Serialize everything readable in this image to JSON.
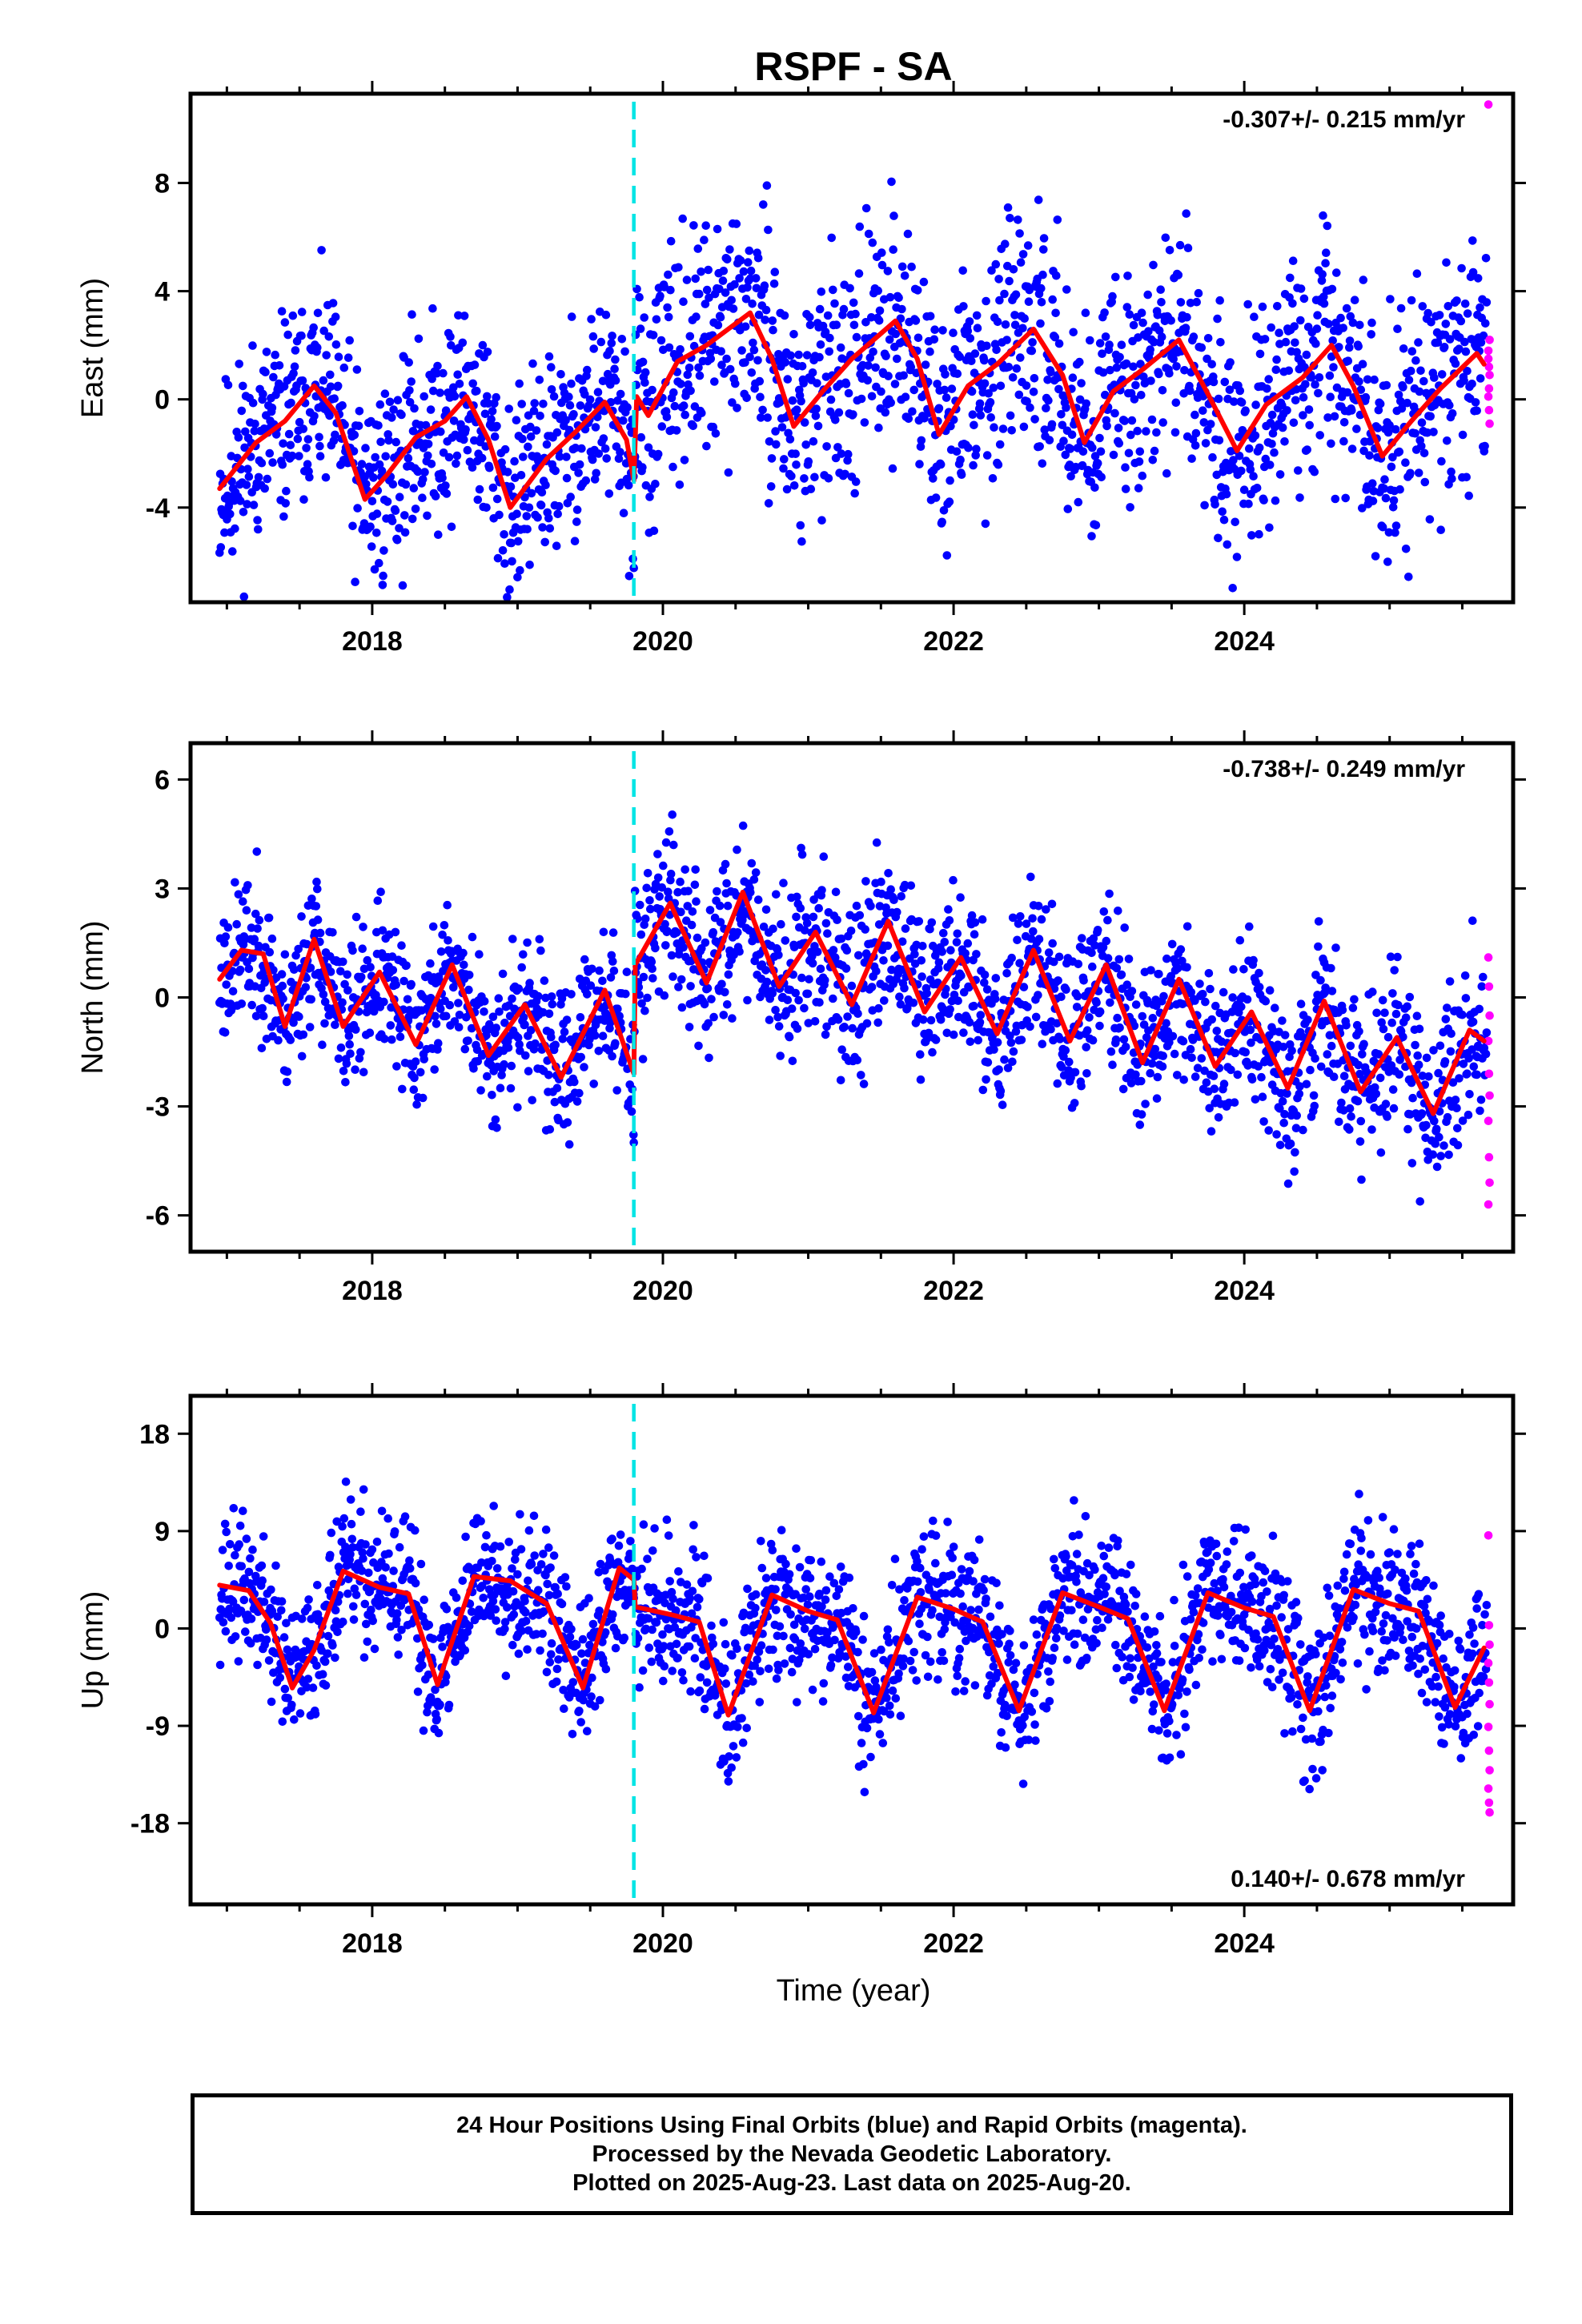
{
  "chart_data": {
    "type": "scatter",
    "title": "RSPF - SA",
    "xlabel": "Time (year)",
    "x_ticks": [
      2018,
      2020,
      2022,
      2024
    ],
    "xlim": [
      2016.75,
      2025.85
    ],
    "event_line_x": 2019.8,
    "colors": {
      "final": "#0000ff",
      "rapid": "#ff00ff",
      "fit": "#ff0000",
      "event": "#00e5e5"
    },
    "panels": [
      {
        "ylabel": "East (mm)",
        "ylim": [
          -7.5,
          11.3
        ],
        "y_ticks": [
          -4,
          0,
          4,
          8
        ],
        "rate": "-0.307+/- 0.215 mm/yr",
        "rate_position": "top-right",
        "fit": [
          [
            2016.95,
            -3.3
          ],
          [
            2017.2,
            -1.6
          ],
          [
            2017.4,
            -0.8
          ],
          [
            2017.6,
            0.5
          ],
          [
            2017.75,
            -0.5
          ],
          [
            2017.95,
            -3.7
          ],
          [
            2018.1,
            -2.8
          ],
          [
            2018.3,
            -1.4
          ],
          [
            2018.5,
            -0.8
          ],
          [
            2018.65,
            0.1
          ],
          [
            2018.8,
            -1.5
          ],
          [
            2018.95,
            -4.0
          ],
          [
            2019.2,
            -2.2
          ],
          [
            2019.4,
            -1.2
          ],
          [
            2019.6,
            -0.1
          ],
          [
            2019.75,
            -1.5
          ],
          [
            2019.8,
            -3.0
          ],
          [
            2019.82,
            0.1
          ],
          [
            2019.9,
            -0.6
          ],
          [
            2020.1,
            1.4
          ],
          [
            2020.3,
            2.0
          ],
          [
            2020.45,
            2.6
          ],
          [
            2020.6,
            3.2
          ],
          [
            2020.75,
            1.5
          ],
          [
            2020.9,
            -1.0
          ],
          [
            2021.1,
            0.3
          ],
          [
            2021.3,
            1.5
          ],
          [
            2021.6,
            2.9
          ],
          [
            2021.75,
            1.5
          ],
          [
            2021.9,
            -1.3
          ],
          [
            2022.1,
            0.5
          ],
          [
            2022.3,
            1.3
          ],
          [
            2022.55,
            2.6
          ],
          [
            2022.75,
            0.9
          ],
          [
            2022.9,
            -1.6
          ],
          [
            2023.1,
            0.3
          ],
          [
            2023.3,
            1.1
          ],
          [
            2023.55,
            2.2
          ],
          [
            2023.75,
            0.2
          ],
          [
            2023.95,
            -1.9
          ],
          [
            2024.15,
            -0.2
          ],
          [
            2024.4,
            0.8
          ],
          [
            2024.6,
            2.0
          ],
          [
            2024.75,
            0.5
          ],
          [
            2024.95,
            -2.1
          ],
          [
            2025.15,
            -0.8
          ],
          [
            2025.35,
            0.4
          ],
          [
            2025.6,
            1.7
          ],
          [
            2025.65,
            1.3
          ]
        ],
        "seed": 11,
        "bands": [
          [
            2016.95,
            2019.8,
            3.0
          ],
          [
            2019.8,
            2025.67,
            3.3
          ]
        ],
        "rapid": [
          10.9,
          1.2,
          2.2,
          1.5,
          0.4,
          0.9,
          0.1,
          -0.4,
          -0.9,
          1.8
        ]
      },
      {
        "ylabel": "North (mm)",
        "ylim": [
          -7.0,
          7.0
        ],
        "y_ticks": [
          -6,
          -3,
          0,
          3,
          6
        ],
        "rate": "-0.738+/- 0.249 mm/yr",
        "rate_position": "top-right",
        "fit": [
          [
            2016.95,
            0.5
          ],
          [
            2017.1,
            1.3
          ],
          [
            2017.25,
            1.2
          ],
          [
            2017.4,
            -0.8
          ],
          [
            2017.6,
            1.6
          ],
          [
            2017.8,
            -0.8
          ],
          [
            2018.05,
            0.7
          ],
          [
            2018.3,
            -1.3
          ],
          [
            2018.55,
            0.9
          ],
          [
            2018.8,
            -1.6
          ],
          [
            2019.05,
            -0.2
          ],
          [
            2019.3,
            -2.2
          ],
          [
            2019.6,
            0.2
          ],
          [
            2019.8,
            -2.1
          ],
          [
            2019.81,
            0.9
          ],
          [
            2020.05,
            2.6
          ],
          [
            2020.3,
            0.4
          ],
          [
            2020.55,
            2.9
          ],
          [
            2020.8,
            0.3
          ],
          [
            2021.05,
            1.8
          ],
          [
            2021.3,
            -0.2
          ],
          [
            2021.55,
            2.1
          ],
          [
            2021.8,
            -0.4
          ],
          [
            2022.05,
            1.1
          ],
          [
            2022.3,
            -1.0
          ],
          [
            2022.55,
            1.3
          ],
          [
            2022.8,
            -1.2
          ],
          [
            2023.05,
            0.9
          ],
          [
            2023.3,
            -1.8
          ],
          [
            2023.55,
            0.5
          ],
          [
            2023.8,
            -1.9
          ],
          [
            2024.05,
            -0.4
          ],
          [
            2024.3,
            -2.5
          ],
          [
            2024.55,
            -0.1
          ],
          [
            2024.8,
            -2.6
          ],
          [
            2025.05,
            -1.1
          ],
          [
            2025.3,
            -3.2
          ],
          [
            2025.55,
            -0.9
          ],
          [
            2025.65,
            -1.2
          ]
        ],
        "seed": 23,
        "bands": [
          [
            2016.95,
            2019.8,
            1.6
          ],
          [
            2019.8,
            2025.67,
            1.8
          ]
        ],
        "rapid": [
          1.1,
          0.3,
          -0.5,
          -1.2,
          -2.1,
          -2.7,
          -3.4,
          -4.4,
          -5.1,
          -5.7
        ]
      },
      {
        "ylabel": "Up (mm)",
        "ylim": [
          -25.5,
          21.5
        ],
        "y_ticks": [
          -18,
          -9,
          0,
          9,
          18
        ],
        "rate": "0.140+/- 0.678 mm/yr",
        "rate_position": "bottom-right",
        "fit": [
          [
            2016.95,
            4.0
          ],
          [
            2017.15,
            3.5
          ],
          [
            2017.3,
            0.5
          ],
          [
            2017.45,
            -5.5
          ],
          [
            2017.6,
            -2.0
          ],
          [
            2017.8,
            5.3
          ],
          [
            2018.05,
            3.8
          ],
          [
            2018.25,
            3.2
          ],
          [
            2018.45,
            -5.2
          ],
          [
            2018.7,
            4.8
          ],
          [
            2018.95,
            4.4
          ],
          [
            2019.2,
            2.3
          ],
          [
            2019.45,
            -5.5
          ],
          [
            2019.7,
            5.6
          ],
          [
            2019.8,
            4.5
          ],
          [
            2019.81,
            2.0
          ],
          [
            2020.05,
            1.3
          ],
          [
            2020.25,
            0.6
          ],
          [
            2020.45,
            -8.0
          ],
          [
            2020.75,
            3.1
          ],
          [
            2021.0,
            1.6
          ],
          [
            2021.2,
            0.8
          ],
          [
            2021.45,
            -7.8
          ],
          [
            2021.75,
            2.9
          ],
          [
            2022.0,
            1.8
          ],
          [
            2022.2,
            0.6
          ],
          [
            2022.45,
            -7.6
          ],
          [
            2022.75,
            3.3
          ],
          [
            2023.0,
            2.0
          ],
          [
            2023.2,
            0.9
          ],
          [
            2023.45,
            -7.6
          ],
          [
            2023.75,
            3.3
          ],
          [
            2024.0,
            1.9
          ],
          [
            2024.2,
            1.1
          ],
          [
            2024.45,
            -7.6
          ],
          [
            2024.75,
            3.6
          ],
          [
            2025.0,
            2.3
          ],
          [
            2025.2,
            1.6
          ],
          [
            2025.45,
            -7.3
          ],
          [
            2025.65,
            -1.8
          ]
        ],
        "seed": 37,
        "bands": [
          [
            2016.95,
            2019.8,
            5.2
          ],
          [
            2019.8,
            2025.67,
            5.5
          ]
        ],
        "rapid": [
          8.6,
          0.3,
          -1.5,
          -3.2,
          -5.0,
          -7.0,
          -9.1,
          -11.3,
          -13.1,
          -14.8,
          -16.1,
          -17.0
        ]
      }
    ]
  },
  "caption": {
    "line1": "24 Hour Positions Using Final Orbits (blue) and Rapid Orbits (magenta).",
    "line2": "Processed by the Nevada Geodetic Laboratory.",
    "line3": "Plotted on 2025-Aug-23. Last data on 2025-Aug-20."
  }
}
